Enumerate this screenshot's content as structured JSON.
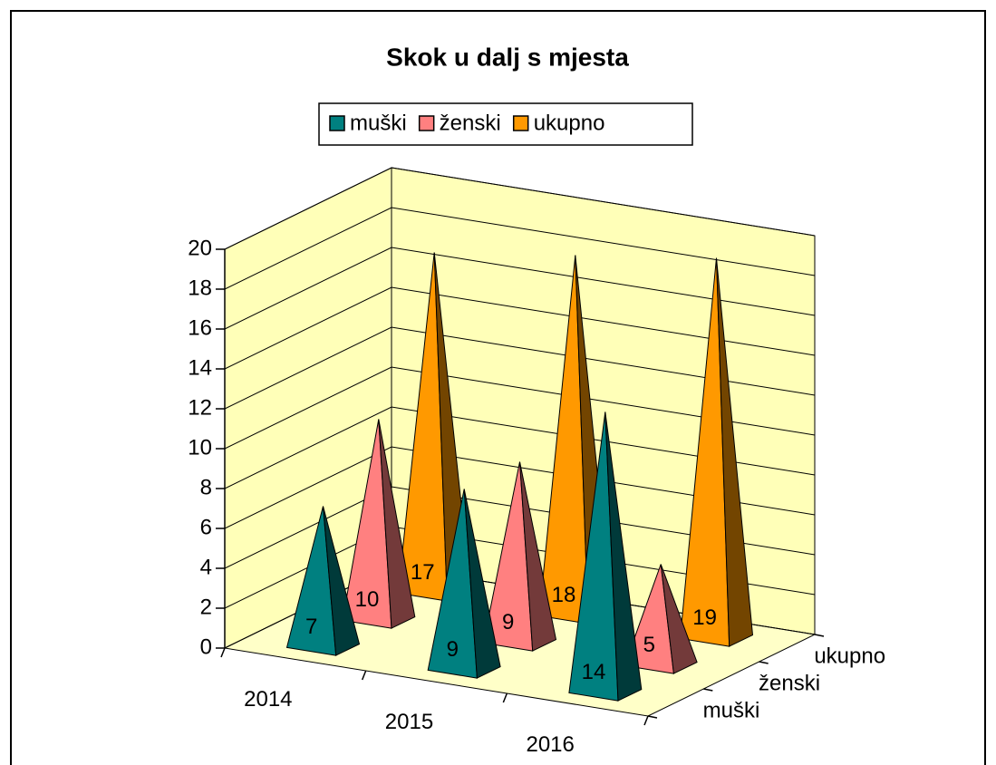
{
  "chart_data": {
    "type": "pyramid3d",
    "title": "Skok u dalj s mjesta",
    "categories": [
      "2014",
      "2015",
      "2016"
    ],
    "series": [
      {
        "name": "muški",
        "color": "#008080",
        "values": [
          7,
          9,
          14
        ]
      },
      {
        "name": "ženski",
        "color": "#FF8080",
        "values": [
          10,
          9,
          5
        ]
      },
      {
        "name": "ukupno",
        "color": "#FF9900",
        "values": [
          17,
          18,
          19
        ]
      }
    ],
    "ylim": [
      0,
      20
    ],
    "yticks": [
      0,
      2,
      4,
      6,
      8,
      10,
      12,
      14,
      16,
      18,
      20
    ],
    "grid": true,
    "legend": "top"
  }
}
